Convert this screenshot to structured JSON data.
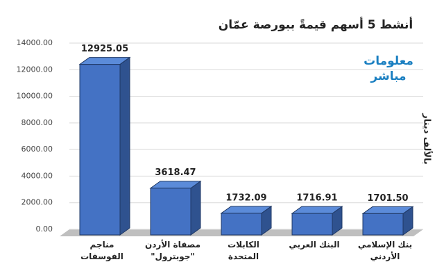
{
  "chart_data": {
    "type": "bar3d",
    "title": "أنشط 5 أسهم قيمةً ببورصة عمّان",
    "y_label": "بالألف دينار",
    "logo": {
      "line1": "معلومات",
      "line2": "مباشر"
    },
    "categories": [
      "مناجم الفوسفات",
      "مصفاة الأردن \"جوبترول\"",
      "الكابلات المتحدة",
      "البنك العربي",
      "بنك الإسلامي الأردني"
    ],
    "values": [
      12925.05,
      3618.47,
      1732.09,
      1716.91,
      1701.5
    ],
    "value_labels": [
      "12925.05",
      "3618.47",
      "1732.09",
      "1716.91",
      "1701.50"
    ],
    "color": "#4472c4",
    "ylim": [
      0,
      14000
    ],
    "yticks": [
      {
        "value": 0,
        "label": "0.00"
      },
      {
        "value": 2000,
        "label": "2000.00"
      },
      {
        "value": 4000,
        "label": "4000.00"
      },
      {
        "value": 6000,
        "label": "6000.00"
      },
      {
        "value": 8000,
        "label": "8000.00"
      },
      {
        "value": 10000,
        "label": "10000.00"
      },
      {
        "value": 12000,
        "label": "12000.00"
      },
      {
        "value": 14000,
        "label": "14000.00"
      }
    ],
    "grid": true
  }
}
